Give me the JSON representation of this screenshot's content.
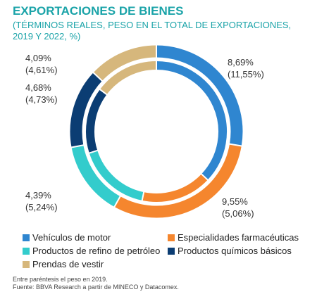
{
  "title": "EXPORTACIONES DE BIENES",
  "subtitle": "(TÉRMINOS REALES, PESO EN EL TOTAL DE EXPORTACIONES, 2019 Y 2022, %)",
  "chart_data": {
    "type": "pie",
    "variant": "double-ring-donut",
    "rings": [
      "2022 (outer)",
      "2019 (inner)"
    ],
    "series": [
      {
        "name": "Vehículos de motor",
        "value_2022": 8.69,
        "value_2019": 11.55,
        "label": "8,69%",
        "label_2019": "(11,55%)",
        "color": "#2f86d0"
      },
      {
        "name": "Especialidades farmacéuticas",
        "value_2022": 9.55,
        "value_2019": 5.06,
        "label": "9,55%",
        "label_2019": "(5,06%)",
        "color": "#f5862e"
      },
      {
        "name": "Productos de refino de petróleo",
        "value_2022": 4.39,
        "value_2019": 5.24,
        "label": "4,39%",
        "label_2019": "(5,24%)",
        "color": "#33cccc"
      },
      {
        "name": "Productos químicos básicos",
        "value_2022": 4.68,
        "value_2019": 4.73,
        "label": "4,68%",
        "label_2019": "(4,73%)",
        "color": "#0b3d73"
      },
      {
        "name": "Prendas de vestir",
        "value_2022": 4.09,
        "value_2019": 4.61,
        "label": "4,09%",
        "label_2019": "(4,61%)",
        "color": "#d6b77c"
      }
    ]
  },
  "notes": {
    "line1": "Entre paréntesis el peso en 2019.",
    "line2": "Fuente: BBVA Research a partir de MINECO y Datacomex."
  }
}
